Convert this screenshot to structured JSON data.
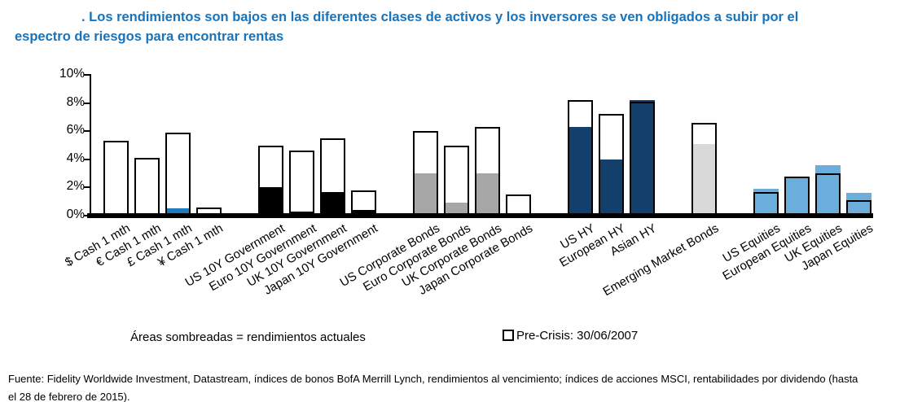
{
  "title": {
    "line1": ". Los rendimientos son bajos en las diferentes clases de activos y los inversores se ven obligados a subir por el",
    "line2": "espectro de riesgos para encontrar rentas"
  },
  "colors": {
    "title_blue": "#1574BD",
    "bar_outline": "#000000",
    "cash_fill": "#1E7CBE",
    "government_fill": "#000000",
    "corporate_fill": "#A6A6A6",
    "high_yield_fill": "#123F6B",
    "em_bonds_fill": "#D9D9D9",
    "equities_fill": "#6BAEDC"
  },
  "chart_data": {
    "type": "bar",
    "title": "",
    "xlabel": "",
    "ylabel": "",
    "ylim": [
      0,
      10
    ],
    "grid": false,
    "y_ticks": [
      {
        "value": 0,
        "label": "0%"
      },
      {
        "value": 2,
        "label": "2%"
      },
      {
        "value": 4,
        "label": "4%"
      },
      {
        "value": 6,
        "label": "6%"
      },
      {
        "value": 8,
        "label": "8%"
      },
      {
        "value": 10,
        "label": "10%"
      }
    ],
    "series": [
      {
        "name": "Pre-Crisis: 30/06/2007",
        "style": "white bar with black outline"
      },
      {
        "name": "Rendimientos actuales",
        "style": "shaded area inside bar, color varies by asset group"
      }
    ],
    "groups": [
      {
        "name": "cash",
        "fill_color": "#1E7CBE",
        "bars": [
          {
            "label": "$ Cash 1 mth",
            "pre_crisis": 5.3,
            "current": 0.0
          },
          {
            "label": "€ Cash 1 mth",
            "pre_crisis": 4.1,
            "current": 0.0
          },
          {
            "label": "£ Cash 1 mth",
            "pre_crisis": 5.9,
            "current": 0.5
          },
          {
            "label": "¥ Cash 1 mth",
            "pre_crisis": 0.6,
            "current": 0.0
          }
        ]
      },
      {
        "name": "government-bonds",
        "fill_color": "#000000",
        "bars": [
          {
            "label": "US 10Y Government",
            "pre_crisis": 5.0,
            "current": 2.0
          },
          {
            "label": "Euro 10Y Government",
            "pre_crisis": 4.6,
            "current": 0.3
          },
          {
            "label": "UK 10Y Government",
            "pre_crisis": 5.5,
            "current": 1.7
          },
          {
            "label": "Japan 10Y Government",
            "pre_crisis": 1.8,
            "current": 0.4
          }
        ]
      },
      {
        "name": "corporate-bonds",
        "fill_color": "#A6A6A6",
        "bars": [
          {
            "label": "US Corporate Bonds",
            "pre_crisis": 6.0,
            "current": 3.0
          },
          {
            "label": "Euro Corporate Bonds",
            "pre_crisis": 5.0,
            "current": 0.9
          },
          {
            "label": "UK Corporate Bonds",
            "pre_crisis": 6.3,
            "current": 3.0
          },
          {
            "label": "Japan Corporate Bonds",
            "pre_crisis": 1.5,
            "current": 0.2
          }
        ]
      },
      {
        "name": "high-yield",
        "fill_color": "#123F6B",
        "bars": [
          {
            "label": "US HY",
            "pre_crisis": 8.2,
            "current": 6.3
          },
          {
            "label": "European HY",
            "pre_crisis": 7.2,
            "current": 4.0
          },
          {
            "label": "Asian HY",
            "pre_crisis": 8.1,
            "current": 8.2
          }
        ]
      },
      {
        "name": "emerging-market-bonds",
        "fill_color": "#D9D9D9",
        "bars": [
          {
            "label": "Emerging Market Bonds",
            "pre_crisis": 6.6,
            "current": 5.1
          }
        ]
      },
      {
        "name": "equities",
        "fill_color": "#6BAEDC",
        "bars": [
          {
            "label": "US Equities",
            "pre_crisis": 1.7,
            "current": 1.9
          },
          {
            "label": "European Equities",
            "pre_crisis": 2.8,
            "current": 2.8
          },
          {
            "label": "UK Equities",
            "pre_crisis": 3.0,
            "current": 3.6
          },
          {
            "label": "Japan Equities",
            "pre_crisis": 1.1,
            "current": 1.6
          }
        ]
      }
    ],
    "legend": {
      "shaded_note": "Áreas sombreadas = rendimientos actuales",
      "pre_crisis_label": "Pre-Crisis: 30/06/2007"
    }
  },
  "footer": {
    "line1": "Fuente: Fidelity Worldwide Investment, Datastream, índices de bonos BofA Merrill Lynch, rendimientos al vencimiento; índices de acciones MSCI, rentabilidades por dividendo (hasta",
    "line2": "el 28 de febrero de 2015)."
  }
}
